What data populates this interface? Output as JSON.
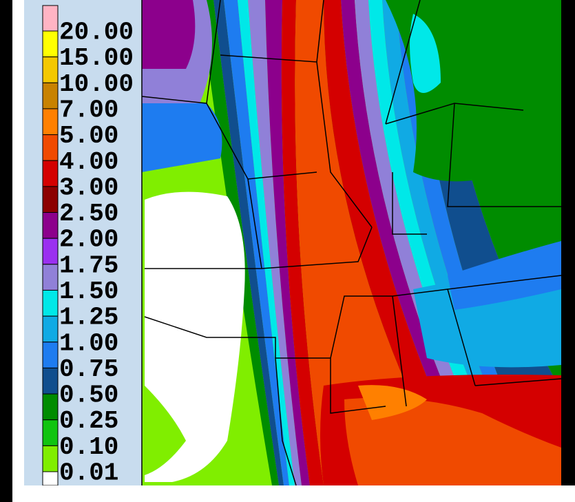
{
  "legend": {
    "labels": [
      "20.00",
      "15.00",
      "10.00",
      "7.00",
      "5.00",
      "4.00",
      "3.00",
      "2.50",
      "2.00",
      "1.75",
      "1.50",
      "1.25",
      "1.00",
      "0.75",
      "0.50",
      "0.25",
      "0.10",
      "0.01"
    ],
    "colors": [
      "#ffb4c4",
      "#ffff00",
      "#f4c800",
      "#c88200",
      "#ff8000",
      "#f04a00",
      "#d40000",
      "#8c0000",
      "#8c008c",
      "#9a30f0",
      "#9080d8",
      "#00e8e8",
      "#10aae4",
      "#1e7cf0",
      "#104e8e",
      "#008c00",
      "#10c410",
      "#80ee00",
      "#ffffff"
    ]
  }
}
